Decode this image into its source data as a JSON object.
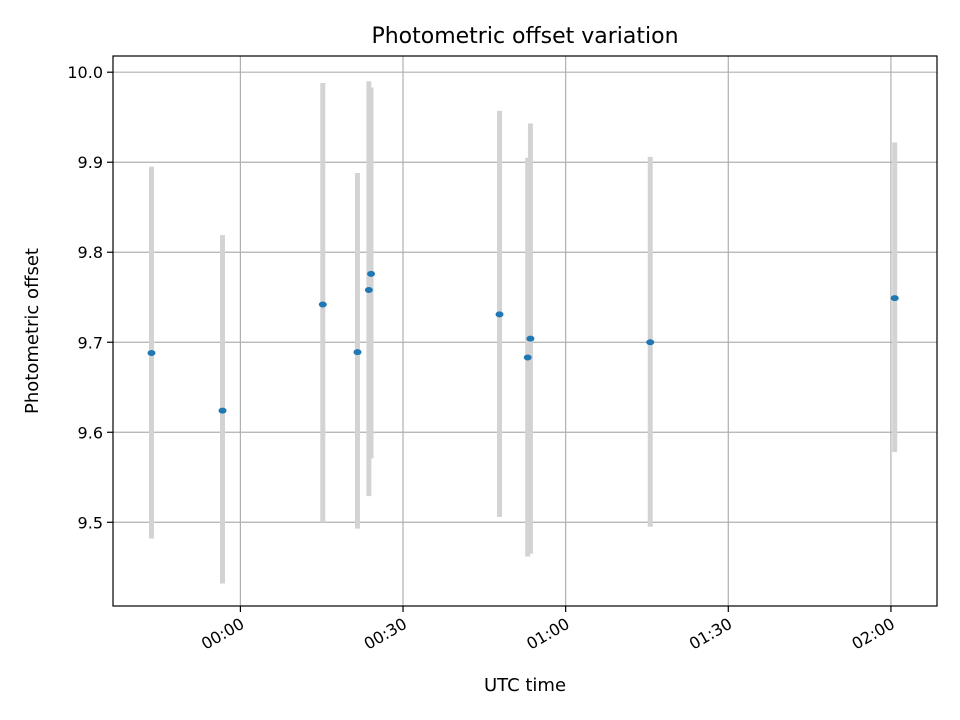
{
  "chart_data": {
    "type": "scatter",
    "title": "Photometric offset variation",
    "xlabel": "UTC time",
    "ylabel": "Photometric offset",
    "x_unit": "minutes after 00:00 UTC",
    "xlim": [
      -23.5,
      128.5
    ],
    "ylim": [
      9.407,
      10.018
    ],
    "grid": true,
    "x_ticks": [
      {
        "value": 0,
        "label": "00:00"
      },
      {
        "value": 30,
        "label": "00:30"
      },
      {
        "value": 60,
        "label": "01:00"
      },
      {
        "value": 90,
        "label": "01:30"
      },
      {
        "value": 120,
        "label": "02:00"
      }
    ],
    "y_ticks": [
      {
        "value": 9.5,
        "label": "9.5"
      },
      {
        "value": 9.6,
        "label": "9.6"
      },
      {
        "value": 9.7,
        "label": "9.7"
      },
      {
        "value": 9.8,
        "label": "9.8"
      },
      {
        "value": 9.9,
        "label": "9.9"
      },
      {
        "value": 10.0,
        "label": "10.0"
      }
    ],
    "colors": {
      "marker": "#1f77b4",
      "errorbar": "#d3d3d3",
      "grid": "#b0b0b0"
    },
    "points": [
      {
        "x": -16.4,
        "y": 9.688,
        "yerr_low": 9.482,
        "yerr_high": 9.895
      },
      {
        "x": -3.3,
        "y": 9.624,
        "yerr_low": 9.432,
        "yerr_high": 9.819
      },
      {
        "x": 15.2,
        "y": 9.742,
        "yerr_low": 9.5,
        "yerr_high": 9.988
      },
      {
        "x": 21.6,
        "y": 9.689,
        "yerr_low": 9.493,
        "yerr_high": 9.888
      },
      {
        "x": 23.7,
        "y": 9.758,
        "yerr_low": 9.529,
        "yerr_high": 9.99
      },
      {
        "x": 24.1,
        "y": 9.776,
        "yerr_low": 9.571,
        "yerr_high": 9.983
      },
      {
        "x": 47.8,
        "y": 9.731,
        "yerr_low": 9.506,
        "yerr_high": 9.957
      },
      {
        "x": 53.0,
        "y": 9.683,
        "yerr_low": 9.462,
        "yerr_high": 9.905
      },
      {
        "x": 53.5,
        "y": 9.704,
        "yerr_low": 9.465,
        "yerr_high": 9.943
      },
      {
        "x": 75.6,
        "y": 9.7,
        "yerr_low": 9.495,
        "yerr_high": 9.906
      },
      {
        "x": 120.7,
        "y": 9.749,
        "yerr_low": 9.578,
        "yerr_high": 9.922
      }
    ]
  }
}
